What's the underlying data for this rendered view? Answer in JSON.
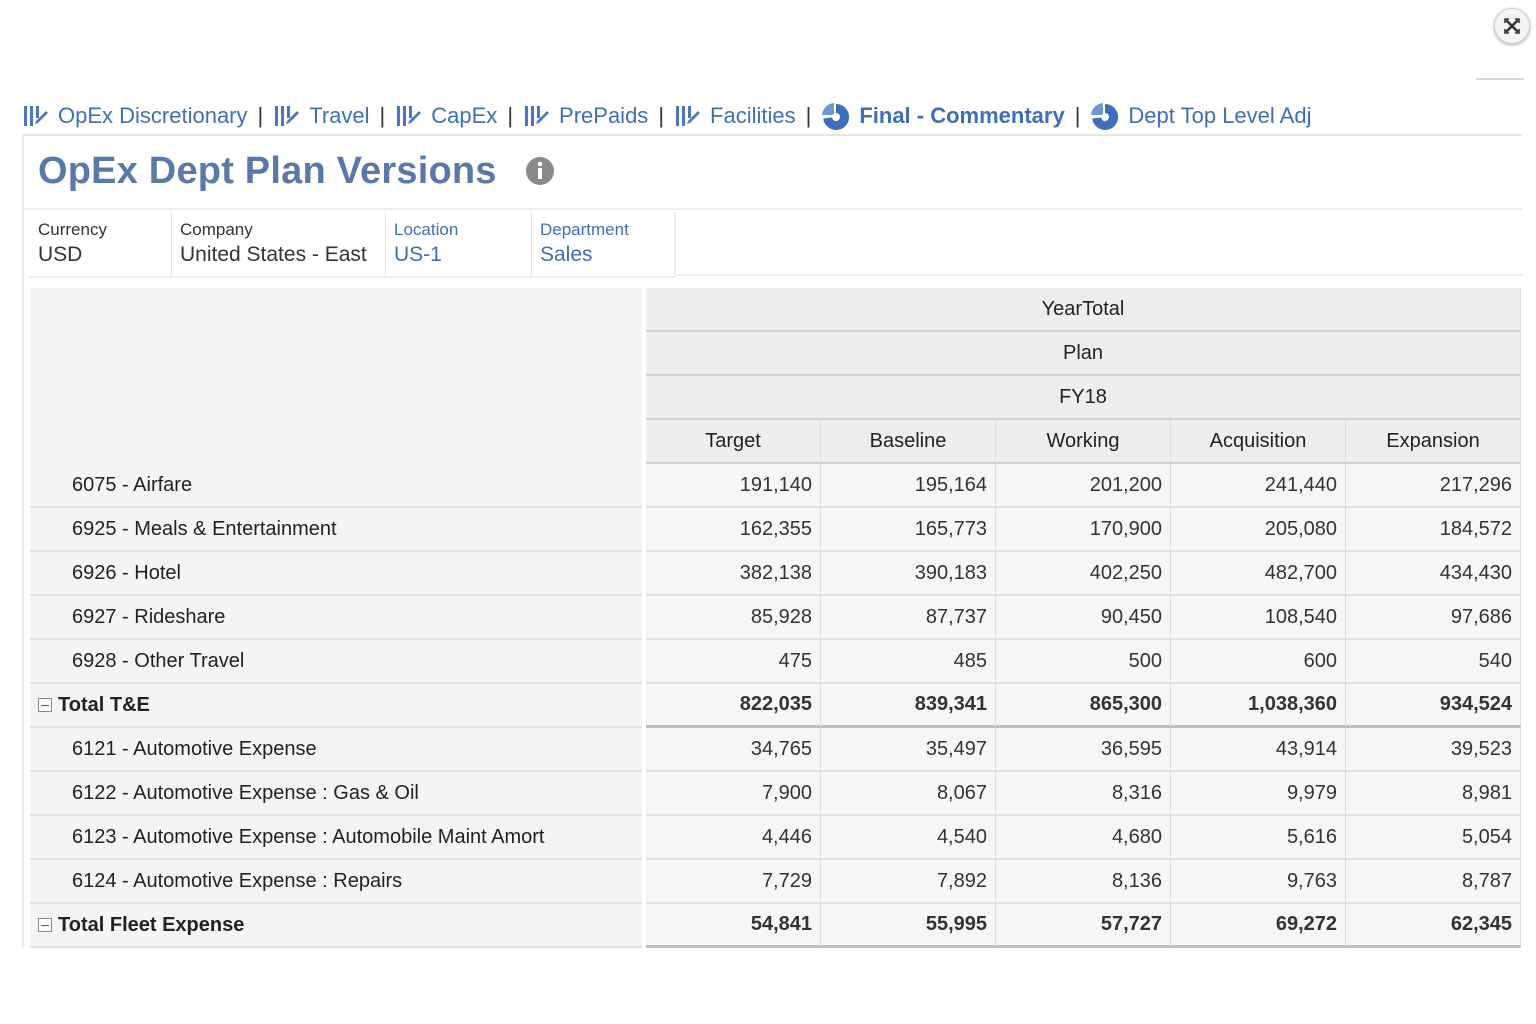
{
  "nav": {
    "items": [
      {
        "label": "OpEx Discretionary",
        "icon": "form-grid-icon",
        "bold": false
      },
      {
        "label": "Travel",
        "icon": "form-grid-icon",
        "bold": false
      },
      {
        "label": "CapEx",
        "icon": "form-grid-icon",
        "bold": false
      },
      {
        "label": "PrePaids",
        "icon": "form-grid-icon",
        "bold": false
      },
      {
        "label": "Facilities",
        "icon": "form-grid-icon",
        "bold": false
      },
      {
        "label": "Final - Commentary",
        "icon": "dashboard-icon",
        "bold": true
      },
      {
        "label": "Dept Top Level Adj",
        "icon": "dashboard-icon",
        "bold": false
      }
    ],
    "separator": "|"
  },
  "page": {
    "title": "OpEx Dept Plan Versions"
  },
  "pov": [
    {
      "label": "Currency",
      "value": "USD",
      "link": false
    },
    {
      "label": "Company",
      "value": "United States - East",
      "link": false
    },
    {
      "label": "Location",
      "value": "US-1",
      "link": true
    },
    {
      "label": "Department",
      "value": "Sales",
      "link": true
    }
  ],
  "grid": {
    "header_rows": [
      "YearTotal",
      "Plan",
      "FY18"
    ],
    "columns": [
      "Target",
      "Baseline",
      "Working",
      "Acquisition",
      "Expansion"
    ],
    "rows": [
      {
        "label": "6075 - Airfare",
        "values": [
          "191,140",
          "195,164",
          "201,200",
          "241,440",
          "217,296"
        ],
        "total": false
      },
      {
        "label": "6925 - Meals & Entertainment",
        "values": [
          "162,355",
          "165,773",
          "170,900",
          "205,080",
          "184,572"
        ],
        "total": false
      },
      {
        "label": "6926 - Hotel",
        "values": [
          "382,138",
          "390,183",
          "402,250",
          "482,700",
          "434,430"
        ],
        "total": false
      },
      {
        "label": "6927 - Rideshare",
        "values": [
          "85,928",
          "87,737",
          "90,450",
          "108,540",
          "97,686"
        ],
        "total": false
      },
      {
        "label": "6928 - Other Travel",
        "values": [
          "475",
          "485",
          "500",
          "600",
          "540"
        ],
        "total": false
      },
      {
        "label": "Total T&E",
        "values": [
          "822,035",
          "839,341",
          "865,300",
          "1,038,360",
          "934,524"
        ],
        "total": true
      },
      {
        "label": "6121 - Automotive Expense",
        "values": [
          "34,765",
          "35,497",
          "36,595",
          "43,914",
          "39,523"
        ],
        "total": false
      },
      {
        "label": "6122 - Automotive Expense : Gas & Oil",
        "values": [
          "7,900",
          "8,067",
          "8,316",
          "9,979",
          "8,981"
        ],
        "total": false
      },
      {
        "label": "6123 - Automotive Expense : Automobile Maint Amort",
        "values": [
          "4,446",
          "4,540",
          "4,680",
          "5,616",
          "5,054"
        ],
        "total": false
      },
      {
        "label": "6124 - Automotive Expense : Repairs",
        "values": [
          "7,729",
          "7,892",
          "8,136",
          "9,763",
          "8,787"
        ],
        "total": false
      },
      {
        "label": "Total Fleet Expense",
        "values": [
          "54,841",
          "55,995",
          "57,727",
          "69,272",
          "62,345"
        ],
        "total": true
      }
    ]
  },
  "colors": {
    "link": "#3f6fb8",
    "title": "#5b79a8"
  }
}
